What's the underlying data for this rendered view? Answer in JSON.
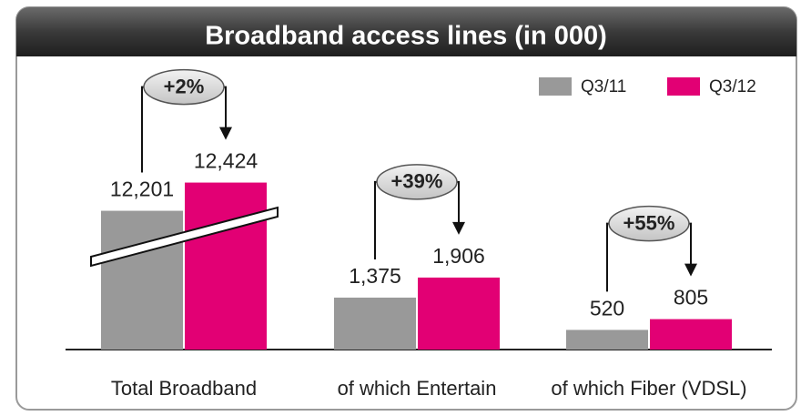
{
  "chart_data": {
    "type": "bar",
    "title": "Broadband access lines (in 000)",
    "categories": [
      "Total Broadband",
      "of which Entertain",
      "of which Fiber (VDSL)"
    ],
    "series": [
      {
        "name": "Q3/11",
        "color": "#999999",
        "values": [
          12201,
          1375,
          520
        ],
        "value_labels": [
          "12,201",
          "1,375",
          "520"
        ]
      },
      {
        "name": "Q3/12",
        "color": "#e20074",
        "values": [
          12424,
          1906,
          805
        ],
        "value_labels": [
          "12,424",
          "1,906",
          "805"
        ]
      }
    ],
    "annotations": [
      "+2%",
      "+39%",
      "+55%"
    ],
    "ylim": [
      0,
      12500
    ],
    "axis_break": [
      3000,
      12000
    ],
    "legend": "top-right"
  }
}
